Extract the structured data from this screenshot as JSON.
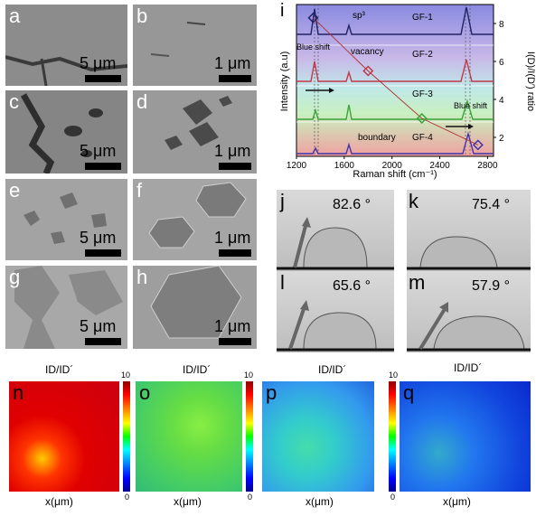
{
  "sem_panels": [
    {
      "label": "a",
      "scale": "5 μm"
    },
    {
      "label": "b",
      "scale": "1 μm"
    },
    {
      "label": "c",
      "scale": "5 μm"
    },
    {
      "label": "d",
      "scale": "1 μm"
    },
    {
      "label": "e",
      "scale": "5 μm"
    },
    {
      "label": "f",
      "scale": "1 μm"
    },
    {
      "label": "g",
      "scale": "5 μm"
    },
    {
      "label": "h",
      "scale": "1 μm"
    }
  ],
  "raman": {
    "panel_label": "i",
    "xlabel": "Raman shift (cm⁻¹)",
    "ylabel_left": "Intensity (a.u)",
    "ylabel_right": "I(D)/I(D′) ratio",
    "xticks": [
      "1200",
      "1600",
      "2000",
      "2400",
      "2800"
    ],
    "yticks_right": [
      "2",
      "4",
      "6",
      "8"
    ],
    "annotations": {
      "sp3": "sp³",
      "vacancy": "vacancy",
      "boundary": "boundary",
      "blue_shift_left": "Blue shift",
      "blue_shift_right": "Blue shift"
    },
    "spectra": [
      "GF-1",
      "GF-2",
      "GF-3",
      "GF-4"
    ],
    "colors": {
      "gf1": "#222266",
      "gf2": "#c0394a",
      "gf3": "#3aa33a",
      "gf4": "#4433aa"
    }
  },
  "chart_data": {
    "type": "scatter",
    "xlabel": "Raman shift (cm⁻¹)",
    "ylabel": "I(D)/I(D′) ratio",
    "xlim": [
      1200,
      2850
    ],
    "ylim": [
      1,
      9
    ],
    "series": [
      {
        "name": "GF-1",
        "x": [
          1340
        ],
        "y": [
          8.3
        ]
      },
      {
        "name": "GF-2",
        "x": [
          1800
        ],
        "y": [
          5.5
        ]
      },
      {
        "name": "GF-3",
        "x": [
          2250
        ],
        "y": [
          3.0
        ]
      },
      {
        "name": "GF-4",
        "x": [
          2720
        ],
        "y": [
          1.6
        ]
      }
    ]
  },
  "contact_angles": [
    {
      "label": "j",
      "angle": "82.6 °"
    },
    {
      "label": "k",
      "angle": "75.4 °"
    },
    {
      "label": "l",
      "angle": "65.6 °"
    },
    {
      "label": "m",
      "angle": "57.9 °"
    }
  ],
  "maps": [
    {
      "label": "n",
      "title": "ID/ID´",
      "cb_max": "10",
      "cb_min": "0",
      "xlabel": "x(μm)"
    },
    {
      "label": "o",
      "title": "ID/ID´",
      "cb_max": "10",
      "cb_min": "0",
      "xlabel": "x(μm)"
    },
    {
      "label": "p",
      "title": "ID/ID´",
      "cb_max": "10",
      "cb_min": "0",
      "xlabel": "x(μm)"
    },
    {
      "label": "q",
      "title": "ID/ID´",
      "cb_max": "10",
      "cb_min": "0",
      "xlabel": "x(μm)"
    }
  ]
}
